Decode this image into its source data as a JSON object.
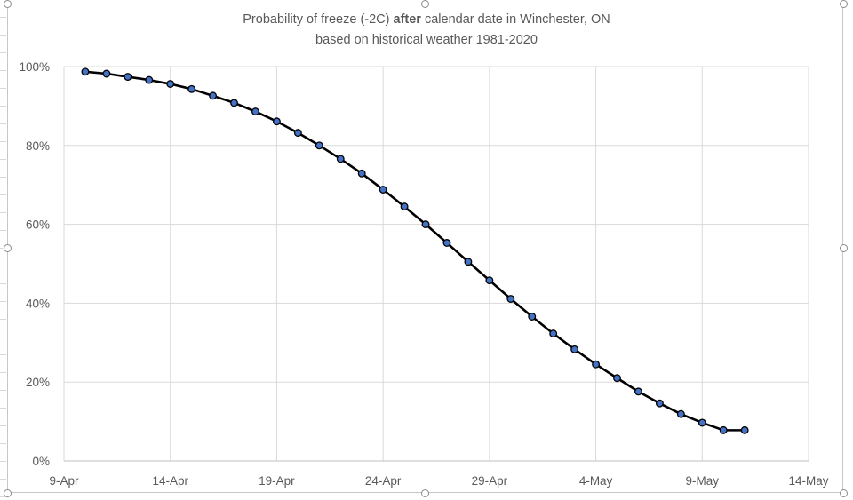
{
  "chart_data": {
    "type": "line",
    "title_parts": {
      "before": "Probability of freeze (-2C) ",
      "bold": "after",
      "after": " calendar date in Winchester, ON"
    },
    "subtitle": "based on historical weather 1981-2020",
    "xlabel": "",
    "ylabel": "",
    "x_tick_labels": [
      "9-Apr",
      "14-Apr",
      "19-Apr",
      "24-Apr",
      "29-Apr",
      "4-May",
      "9-May",
      "14-May"
    ],
    "y_tick_labels": [
      "0%",
      "20%",
      "40%",
      "60%",
      "80%",
      "100%"
    ],
    "xlim_day_offset_from_9_Apr": [
      0,
      35
    ],
    "ylim": [
      0,
      100
    ],
    "grid": true,
    "legend": "none",
    "series": [
      {
        "color": "#000000",
        "marker_color": "#4472c4",
        "x": [
          "10-Apr",
          "11-Apr",
          "12-Apr",
          "13-Apr",
          "14-Apr",
          "15-Apr",
          "16-Apr",
          "17-Apr",
          "18-Apr",
          "19-Apr",
          "20-Apr",
          "21-Apr",
          "22-Apr",
          "23-Apr",
          "24-Apr",
          "25-Apr",
          "26-Apr",
          "27-Apr",
          "28-Apr",
          "29-Apr",
          "30-Apr",
          "1-May",
          "2-May",
          "3-May",
          "4-May",
          "5-May",
          "6-May",
          "7-May",
          "8-May",
          "9-May",
          "10-May",
          "11-May"
        ],
        "values": [
          98.7,
          98.2,
          97.4,
          96.6,
          95.6,
          94.3,
          92.6,
          90.8,
          88.6,
          86.1,
          83.2,
          80.0,
          76.6,
          72.9,
          68.8,
          64.5,
          60.0,
          55.3,
          50.5,
          45.8,
          41.1,
          36.6,
          32.3,
          28.3,
          24.5,
          21.0,
          17.6,
          14.6,
          11.9,
          9.7,
          7.8,
          7.8
        ]
      }
    ]
  }
}
